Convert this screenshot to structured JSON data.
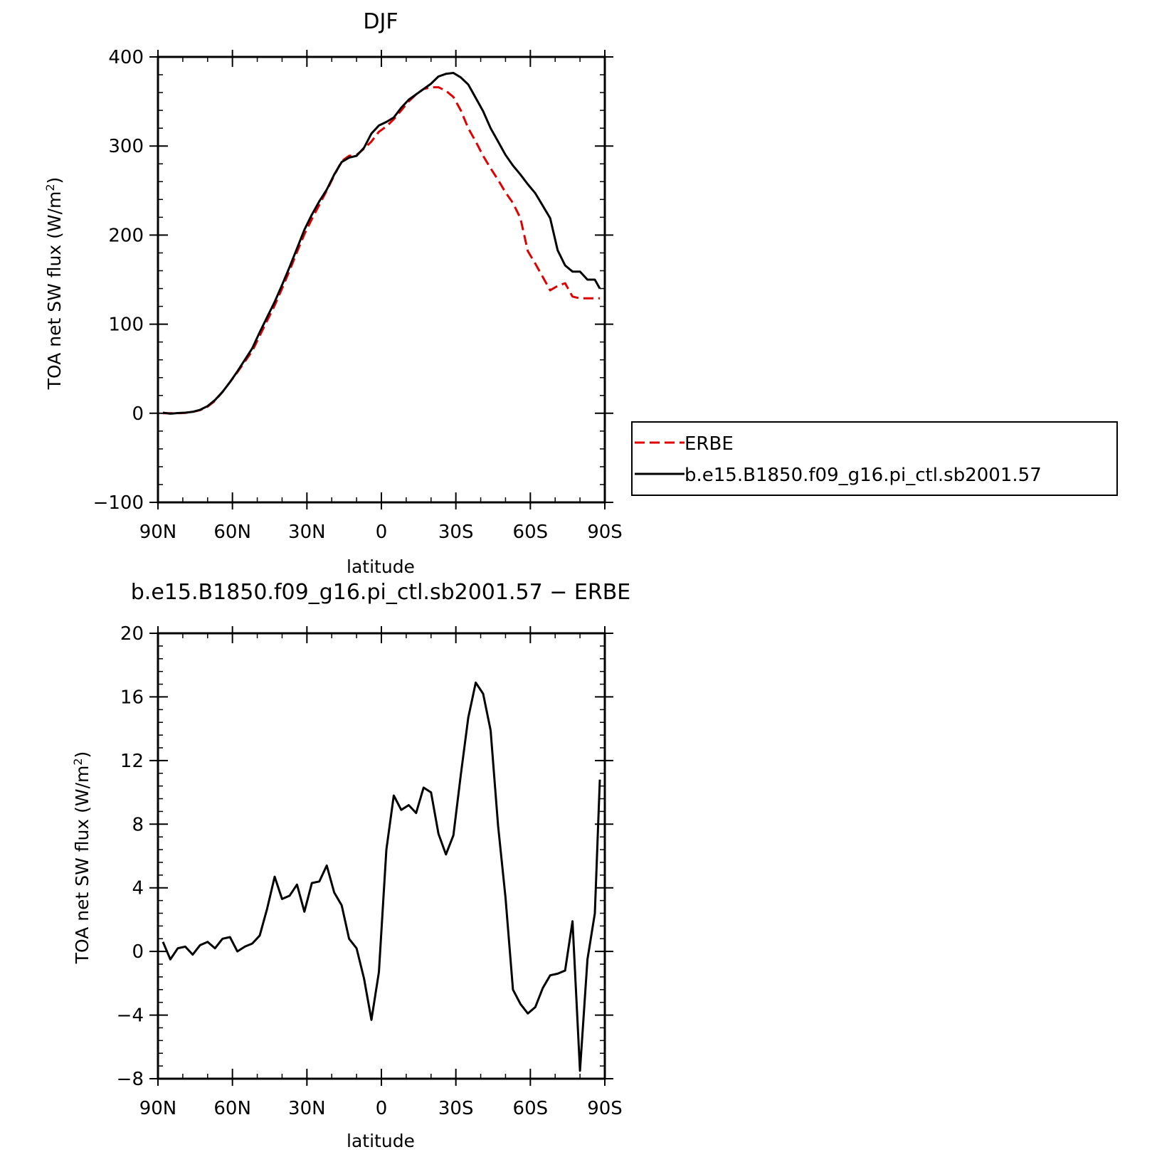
{
  "chart_data": [
    {
      "type": "line",
      "title": "DJF",
      "xlabel": "latitude",
      "ylabel": "TOA net SW flux (W/m",
      "ylabel_sup": "2",
      "ylabel_close": ")",
      "xlim": [
        -90,
        90
      ],
      "ylim": [
        -100,
        400
      ],
      "x_ticks": [
        -90,
        -60,
        -30,
        0,
        30,
        60,
        90
      ],
      "x_tick_labels": [
        "90N",
        "60N",
        "30N",
        "0",
        "30S",
        "60S",
        "90S"
      ],
      "y_ticks": [
        -100,
        0,
        100,
        200,
        300,
        400
      ],
      "y_tick_labels": [
        "−100",
        "0",
        "100",
        "200",
        "300",
        "400"
      ],
      "legend": {
        "placement": "right",
        "entries": [
          "ERBE",
          "b.e15.B1850.f09_g16.pi_ctl.sb2001.57"
        ]
      },
      "series": [
        {
          "name": "ERBE",
          "color": "#e00000",
          "style": "dashed",
          "x": [
            -88,
            -85,
            -82,
            -79,
            -76,
            -73,
            -70,
            -67,
            -64,
            -61,
            -58,
            -55,
            -52,
            -49,
            -46,
            -43,
            -40,
            -37,
            -34,
            -31,
            -28,
            -25,
            -22,
            -19,
            -16,
            -13,
            -10,
            -7,
            -4,
            -1,
            2,
            5,
            8,
            11,
            14,
            17,
            20,
            23,
            26,
            29,
            32,
            35,
            38,
            41,
            44,
            47,
            50,
            53,
            56,
            59,
            62,
            65,
            68,
            71,
            74,
            77,
            80,
            83,
            86,
            88
          ],
          "values": [
            0,
            0,
            0,
            0.5,
            1.5,
            3.5,
            7.5,
            14,
            24,
            35,
            46,
            58,
            70,
            87,
            104,
            121,
            140,
            160,
            181,
            201,
            218,
            234,
            250,
            267,
            283,
            289,
            290,
            297,
            305,
            316,
            322,
            330,
            340,
            350,
            358,
            364,
            366,
            366,
            362,
            355,
            340,
            320,
            305,
            289,
            275,
            262,
            248,
            236,
            219,
            182,
            168,
            153,
            138,
            143,
            146,
            131,
            129,
            129,
            129,
            129
          ]
        },
        {
          "name": "b.e15.B1850.f09_g16.pi_ctl.sb2001.57",
          "color": "#000000",
          "style": "solid",
          "x": [
            -88,
            -85,
            -82,
            -79,
            -76,
            -73,
            -70,
            -67,
            -64,
            -61,
            -58,
            -55,
            -52,
            -49,
            -46,
            -43,
            -40,
            -37,
            -34,
            -31,
            -28,
            -25,
            -22,
            -19,
            -16,
            -13,
            -10,
            -7,
            -4,
            -1,
            2,
            5,
            8,
            11,
            14,
            17,
            20,
            23,
            26,
            29,
            32,
            35,
            38,
            41,
            44,
            47,
            50,
            53,
            56,
            59,
            62,
            65,
            68,
            71,
            74,
            77,
            80,
            83,
            86,
            88
          ],
          "values": [
            0.6,
            -0.5,
            0.2,
            0.6,
            1.6,
            3.9,
            8.1,
            14.9,
            24,
            35,
            47,
            60,
            73,
            91,
            108,
            125,
            144,
            164,
            185,
            206,
            223,
            238,
            251,
            268,
            282,
            287,
            289,
            298,
            314,
            323,
            327,
            332,
            343,
            352,
            358,
            364,
            370,
            378,
            381,
            382,
            377,
            369,
            354,
            339,
            320,
            305,
            290,
            278,
            268,
            257,
            247,
            233,
            219,
            183,
            166,
            159,
            159,
            150,
            150,
            140
          ]
        }
      ]
    },
    {
      "type": "line",
      "title": "b.e15.B1850.f09_g16.pi_ctl.sb2001.57 − ERBE",
      "xlabel": "latitude",
      "ylabel": "TOA net SW flux (W/m",
      "ylabel_sup": "2",
      "ylabel_close": ")",
      "xlim": [
        -90,
        90
      ],
      "ylim": [
        -8,
        20
      ],
      "x_ticks": [
        -90,
        -60,
        -30,
        0,
        30,
        60,
        90
      ],
      "x_tick_labels": [
        "90N",
        "60N",
        "30N",
        "0",
        "30S",
        "60S",
        "90S"
      ],
      "y_ticks": [
        -8,
        -4,
        0,
        4,
        8,
        12,
        16,
        20
      ],
      "y_tick_labels": [
        "−8",
        "−4",
        "0",
        "4",
        "8",
        "12",
        "16",
        "20"
      ],
      "series": [
        {
          "color": "#000000",
          "style": "solid",
          "x": [
            -88,
            -85,
            -82,
            -79,
            -76,
            -73,
            -70,
            -67,
            -64,
            -61,
            -58,
            -55,
            -52,
            -49,
            -46,
            -43,
            -40,
            -37,
            -34,
            -31,
            -28,
            -25,
            -22,
            -19,
            -16,
            -13,
            -10,
            -7,
            -4,
            -1,
            2,
            5,
            8,
            11,
            14,
            17,
            20,
            23,
            26,
            29,
            32,
            35,
            38,
            41,
            44,
            47,
            50,
            53,
            56,
            59,
            62,
            65,
            68,
            71,
            74,
            77,
            80,
            83,
            86,
            88
          ],
          "values": [
            0.6,
            -0.5,
            0.2,
            0.3,
            -0.2,
            0.4,
            0.6,
            0.2,
            0.8,
            0.9,
            0,
            0.3,
            0.5,
            1.0,
            2.7,
            4.7,
            3.3,
            3.5,
            4.2,
            2.5,
            4.3,
            4.4,
            5.4,
            3.7,
            2.9,
            0.8,
            0.2,
            -1.7,
            -4.3,
            -1.3,
            6.4,
            9.8,
            8.9,
            9.2,
            8.7,
            10.3,
            10,
            7.4,
            6.1,
            7.3,
            11.1,
            14.7,
            16.9,
            16.2,
            13.9,
            7.9,
            3.4,
            -2.4,
            -3.3,
            -3.9,
            -3.5,
            -2.3,
            -1.5,
            -1.4,
            -1.2,
            1.9,
            -7.5,
            -0.5,
            2.4,
            10.8
          ]
        }
      ]
    }
  ]
}
